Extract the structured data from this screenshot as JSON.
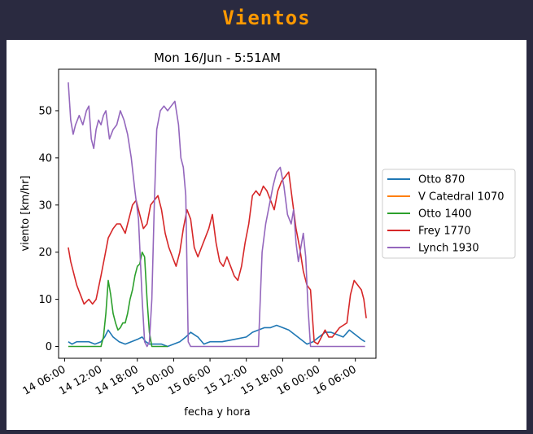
{
  "header": {
    "title": "Vientos"
  },
  "chart_data": {
    "type": "line",
    "title": "Mon 16/Jun - 5:51AM",
    "xlabel": "fecha y hora",
    "ylabel": "viento [km/hr]",
    "x_ticks": [
      "14 06:00",
      "14 12:00",
      "14 18:00",
      "15 00:00",
      "15 06:00",
      "15 12:00",
      "15 18:00",
      "16 00:00",
      "16 06:00"
    ],
    "y_ticks": [
      0,
      10,
      20,
      30,
      40,
      50
    ],
    "ylim": [
      -2.5,
      58.8
    ],
    "xlim_hours_from_14_06": [
      -0.5,
      25.7
    ],
    "grid": false,
    "legend_position": "right",
    "series": [
      {
        "name": "Otto 870",
        "color": "#1f77b4",
        "points": [
          [
            0.3,
            1
          ],
          [
            0.6,
            0.5
          ],
          [
            1.0,
            1
          ],
          [
            1.5,
            1
          ],
          [
            2.0,
            1
          ],
          [
            2.5,
            0.5
          ],
          [
            3.0,
            1
          ],
          [
            3.3,
            2
          ],
          [
            3.6,
            3.5
          ],
          [
            4.0,
            2
          ],
          [
            4.5,
            1
          ],
          [
            5.0,
            0.5
          ],
          [
            5.5,
            1
          ],
          [
            6.0,
            1.5
          ],
          [
            6.4,
            2
          ],
          [
            6.7,
            1
          ],
          [
            7.0,
            0.5
          ],
          [
            7.5,
            0.5
          ],
          [
            8.0,
            0.5
          ],
          [
            8.5,
            0
          ],
          [
            9.0,
            0.5
          ],
          [
            9.5,
            1
          ],
          [
            10.0,
            2
          ],
          [
            10.4,
            3
          ],
          [
            11.0,
            2
          ],
          [
            11.5,
            0.5
          ],
          [
            12.0,
            1
          ],
          [
            13.0,
            1
          ],
          [
            14.0,
            1.5
          ],
          [
            15.0,
            2
          ],
          [
            15.5,
            3
          ],
          [
            16.0,
            3.5
          ],
          [
            16.5,
            4
          ],
          [
            17.0,
            4
          ],
          [
            17.5,
            4.5
          ],
          [
            18.0,
            4
          ],
          [
            18.5,
            3.5
          ],
          [
            19.0,
            2.5
          ],
          [
            19.5,
            1.5
          ],
          [
            20.0,
            0.5
          ],
          [
            20.5,
            1
          ],
          [
            21.0,
            2
          ],
          [
            21.5,
            3
          ],
          [
            22.0,
            3
          ],
          [
            22.5,
            2.5
          ],
          [
            23.0,
            2
          ],
          [
            23.5,
            3.5
          ],
          [
            24.0,
            2.5
          ],
          [
            24.5,
            1.5
          ],
          [
            24.8,
            1
          ]
        ]
      },
      {
        "name": "V Catedral 1070",
        "color": "#ff7f0e",
        "points": []
      },
      {
        "name": "Otto 1400",
        "color": "#2ca02c",
        "points": [
          [
            0.3,
            0
          ],
          [
            1.0,
            0
          ],
          [
            2.0,
            0
          ],
          [
            3.0,
            0
          ],
          [
            3.2,
            2
          ],
          [
            3.4,
            7
          ],
          [
            3.6,
            14
          ],
          [
            3.8,
            11
          ],
          [
            4.0,
            7
          ],
          [
            4.2,
            5
          ],
          [
            4.4,
            3.5
          ],
          [
            4.6,
            4
          ],
          [
            4.8,
            5
          ],
          [
            5.0,
            5
          ],
          [
            5.2,
            7
          ],
          [
            5.4,
            10
          ],
          [
            5.6,
            12
          ],
          [
            5.8,
            15
          ],
          [
            6.0,
            17
          ],
          [
            6.2,
            17.5
          ],
          [
            6.4,
            20
          ],
          [
            6.6,
            19
          ],
          [
            6.8,
            10
          ],
          [
            7.0,
            3
          ],
          [
            7.2,
            0
          ],
          [
            8.5,
            0
          ]
        ]
      },
      {
        "name": "Frey 1770",
        "color": "#d62728",
        "points": [
          [
            0.3,
            21
          ],
          [
            0.5,
            18
          ],
          [
            0.7,
            16
          ],
          [
            1.0,
            13
          ],
          [
            1.3,
            11
          ],
          [
            1.6,
            9
          ],
          [
            2.0,
            10
          ],
          [
            2.3,
            9
          ],
          [
            2.6,
            10
          ],
          [
            3.0,
            15
          ],
          [
            3.3,
            19
          ],
          [
            3.6,
            23
          ],
          [
            4.0,
            25
          ],
          [
            4.3,
            26
          ],
          [
            4.6,
            26
          ],
          [
            5.0,
            24
          ],
          [
            5.3,
            27
          ],
          [
            5.6,
            30
          ],
          [
            5.9,
            31
          ],
          [
            6.2,
            28
          ],
          [
            6.5,
            25
          ],
          [
            6.8,
            26
          ],
          [
            7.1,
            30
          ],
          [
            7.4,
            31
          ],
          [
            7.7,
            32
          ],
          [
            8.0,
            29
          ],
          [
            8.3,
            24
          ],
          [
            8.6,
            21
          ],
          [
            8.9,
            19
          ],
          [
            9.2,
            17
          ],
          [
            9.5,
            20
          ],
          [
            9.8,
            25
          ],
          [
            10.1,
            29
          ],
          [
            10.4,
            27
          ],
          [
            10.7,
            21
          ],
          [
            11.0,
            19
          ],
          [
            11.3,
            21
          ],
          [
            11.6,
            23
          ],
          [
            11.9,
            25
          ],
          [
            12.2,
            28
          ],
          [
            12.5,
            22
          ],
          [
            12.8,
            18
          ],
          [
            13.1,
            17
          ],
          [
            13.4,
            19
          ],
          [
            13.7,
            17
          ],
          [
            14.0,
            15
          ],
          [
            14.3,
            14
          ],
          [
            14.6,
            17
          ],
          [
            14.9,
            22
          ],
          [
            15.2,
            26
          ],
          [
            15.5,
            32
          ],
          [
            15.8,
            33
          ],
          [
            16.1,
            32
          ],
          [
            16.4,
            34
          ],
          [
            16.7,
            33
          ],
          [
            17.0,
            31
          ],
          [
            17.3,
            29
          ],
          [
            17.6,
            33
          ],
          [
            17.9,
            35
          ],
          [
            18.2,
            36
          ],
          [
            18.5,
            37
          ],
          [
            18.8,
            31
          ],
          [
            19.1,
            25
          ],
          [
            19.4,
            21
          ],
          [
            19.7,
            16
          ],
          [
            20.0,
            13
          ],
          [
            20.3,
            12
          ],
          [
            20.6,
            1
          ],
          [
            20.9,
            0.5
          ],
          [
            21.2,
            2
          ],
          [
            21.5,
            3.5
          ],
          [
            21.8,
            2
          ],
          [
            22.1,
            2
          ],
          [
            22.4,
            3
          ],
          [
            22.7,
            4
          ],
          [
            23.0,
            4.5
          ],
          [
            23.3,
            5
          ],
          [
            23.6,
            11
          ],
          [
            23.9,
            14
          ],
          [
            24.2,
            13
          ],
          [
            24.5,
            12
          ],
          [
            24.7,
            10
          ],
          [
            24.9,
            6
          ]
        ]
      },
      {
        "name": "Lynch 1930",
        "color": "#9467bd",
        "points": [
          [
            0.3,
            56
          ],
          [
            0.5,
            48
          ],
          [
            0.7,
            45
          ],
          [
            0.9,
            47
          ],
          [
            1.2,
            49
          ],
          [
            1.5,
            47
          ],
          [
            1.8,
            50
          ],
          [
            2.0,
            51
          ],
          [
            2.2,
            44
          ],
          [
            2.4,
            42
          ],
          [
            2.6,
            46
          ],
          [
            2.8,
            48
          ],
          [
            3.0,
            47
          ],
          [
            3.2,
            49
          ],
          [
            3.4,
            50
          ],
          [
            3.7,
            44
          ],
          [
            4.0,
            46
          ],
          [
            4.3,
            47
          ],
          [
            4.6,
            50
          ],
          [
            4.9,
            48
          ],
          [
            5.2,
            45
          ],
          [
            5.5,
            40
          ],
          [
            5.8,
            33
          ],
          [
            6.1,
            27
          ],
          [
            6.4,
            10
          ],
          [
            6.6,
            1
          ],
          [
            6.8,
            0
          ],
          [
            7.0,
            1
          ],
          [
            7.2,
            10
          ],
          [
            7.4,
            30
          ],
          [
            7.6,
            46
          ],
          [
            7.9,
            50
          ],
          [
            8.2,
            51
          ],
          [
            8.5,
            50
          ],
          [
            8.8,
            51
          ],
          [
            9.1,
            52
          ],
          [
            9.4,
            47
          ],
          [
            9.6,
            40
          ],
          [
            9.8,
            38
          ],
          [
            10.0,
            32
          ],
          [
            10.2,
            1
          ],
          [
            10.4,
            0
          ],
          [
            14.0,
            0
          ],
          [
            15.0,
            0
          ],
          [
            15.5,
            0
          ],
          [
            16.0,
            0
          ],
          [
            16.3,
            20
          ],
          [
            16.6,
            26
          ],
          [
            16.9,
            30
          ],
          [
            17.2,
            34
          ],
          [
            17.5,
            37
          ],
          [
            17.8,
            38
          ],
          [
            18.1,
            34
          ],
          [
            18.4,
            28
          ],
          [
            18.7,
            26
          ],
          [
            18.9,
            29
          ],
          [
            19.1,
            22
          ],
          [
            19.3,
            18
          ],
          [
            19.5,
            21
          ],
          [
            19.7,
            24
          ],
          [
            19.9,
            19
          ],
          [
            20.1,
            8
          ],
          [
            20.3,
            0
          ],
          [
            24.8,
            0
          ]
        ]
      }
    ]
  }
}
